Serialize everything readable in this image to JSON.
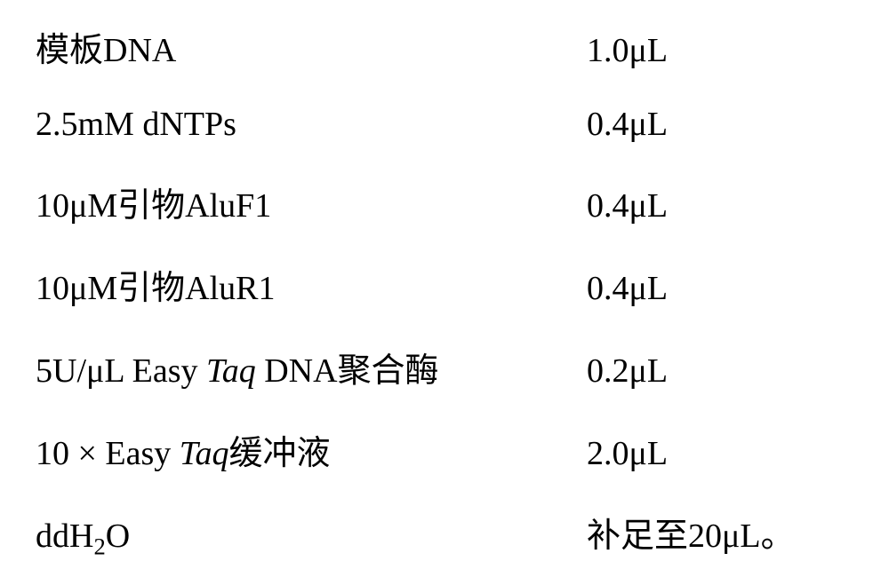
{
  "reagents": {
    "rows": [
      {
        "component_html": "模板DNA",
        "amount": "1.0μL"
      },
      {
        "component_html": "2.5mM dNTPs",
        "amount": "0.4μL"
      },
      {
        "component_html": "10μM引物AluF1",
        "amount": "0.4μL"
      },
      {
        "component_html": "10μM引物AluR1",
        "amount": "0.4μL"
      },
      {
        "component_html": "5U/μL Easy <span class=\"italic\">Taq</span> DNA聚合酶",
        "amount": "0.2μL"
      },
      {
        "component_html": "10 × Easy <span class=\"italic\">Taq</span>缓冲液",
        "amount": "2.0μL"
      },
      {
        "component_html": "ddH<sub>2</sub>O",
        "amount": "补足至20μL。"
      }
    ],
    "font_size": 38,
    "text_color": "#000000",
    "background_color": "#ffffff",
    "row_spacing": 38,
    "component_col_width": 590
  }
}
